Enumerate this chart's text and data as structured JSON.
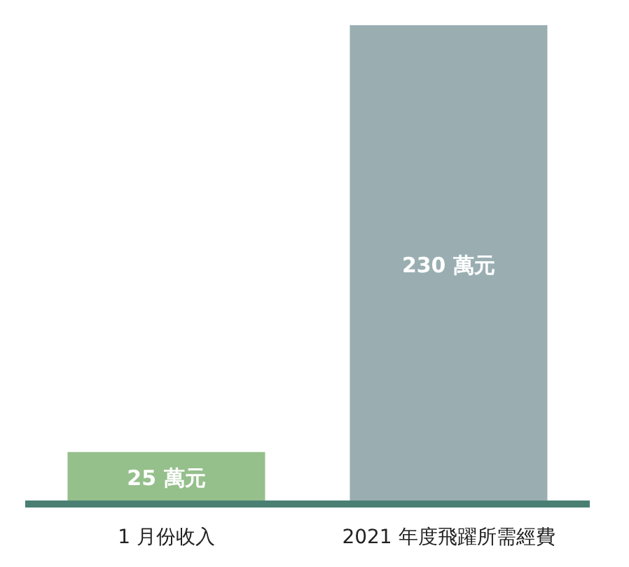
{
  "chart_data": {
    "type": "bar",
    "categories": [
      "1 月份收入",
      "2021 年度飛躍所需經費"
    ],
    "values": [
      25,
      230
    ],
    "colors": [
      "#95bf8b",
      "#9aaeb2"
    ],
    "value_labels": [
      "25 萬元",
      "230 萬元"
    ]
  }
}
